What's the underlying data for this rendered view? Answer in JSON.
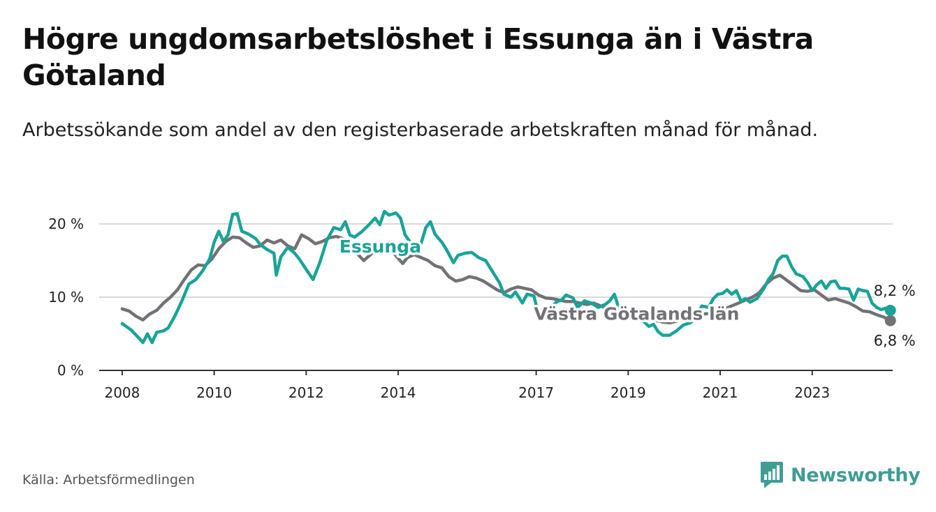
{
  "title": "Högre ungdomsarbetslöshet i Essunga än i Västra Götaland",
  "subtitle": "Arbetssökande som andel av den registerbaserade arbetskraften månad för månad.",
  "source": "Källa: Arbetsförmedlingen",
  "brand": "Newsworthy",
  "colors": {
    "essunga": "#1aa397",
    "vg": "#737176",
    "grid": "#d9d9d9",
    "axis": "#333333"
  },
  "chart_data": {
    "type": "line",
    "title": "Högre ungdomsarbetslöshet i Essunga än i Västra Götaland",
    "xlabel": "",
    "ylabel": "",
    "xlim": [
      2007.5,
      2024.75
    ],
    "ylim": [
      0,
      22
    ],
    "y_ticks": [
      0,
      10,
      20
    ],
    "y_tick_labels": [
      "0 %",
      "10 %",
      "20 %"
    ],
    "x_ticks": [
      2008,
      2010,
      2012,
      2014,
      2017,
      2019,
      2021,
      2023
    ],
    "x_tick_labels": [
      "2008",
      "2010",
      "2012",
      "2014",
      "2017",
      "2019",
      "2021",
      "2023"
    ],
    "grid": true,
    "series": [
      {
        "name": "Essunga",
        "label": "Essunga",
        "end_label": "8,2 %",
        "points": [
          [
            2008.0,
            6.4
          ],
          [
            2008.2,
            5.5
          ],
          [
            2008.35,
            4.5
          ],
          [
            2008.45,
            3.8
          ],
          [
            2008.55,
            5.0
          ],
          [
            2008.65,
            3.8
          ],
          [
            2008.75,
            5.2
          ],
          [
            2008.9,
            5.4
          ],
          [
            2009.0,
            5.8
          ],
          [
            2009.15,
            7.5
          ],
          [
            2009.3,
            9.5
          ],
          [
            2009.45,
            11.8
          ],
          [
            2009.6,
            12.4
          ],
          [
            2009.75,
            13.6
          ],
          [
            2009.9,
            15.2
          ],
          [
            2010.0,
            17.5
          ],
          [
            2010.1,
            19.0
          ],
          [
            2010.2,
            17.6
          ],
          [
            2010.3,
            18.5
          ],
          [
            2010.4,
            21.3
          ],
          [
            2010.5,
            21.4
          ],
          [
            2010.6,
            19.0
          ],
          [
            2010.75,
            18.6
          ],
          [
            2010.9,
            18.0
          ],
          [
            2011.0,
            17.2
          ],
          [
            2011.15,
            16.5
          ],
          [
            2011.3,
            16.0
          ],
          [
            2011.35,
            13.0
          ],
          [
            2011.45,
            15.5
          ],
          [
            2011.6,
            16.8
          ],
          [
            2011.75,
            16.0
          ],
          [
            2011.85,
            15.2
          ],
          [
            2012.0,
            13.8
          ],
          [
            2012.15,
            12.4
          ],
          [
            2012.3,
            14.8
          ],
          [
            2012.45,
            17.8
          ],
          [
            2012.6,
            19.5
          ],
          [
            2012.75,
            19.2
          ],
          [
            2012.85,
            20.3
          ],
          [
            2012.95,
            18.5
          ],
          [
            2013.05,
            18.2
          ],
          [
            2013.2,
            18.9
          ],
          [
            2013.35,
            19.8
          ],
          [
            2013.5,
            20.8
          ],
          [
            2013.6,
            19.9
          ],
          [
            2013.7,
            21.7
          ],
          [
            2013.8,
            21.2
          ],
          [
            2013.95,
            21.5
          ],
          [
            2014.05,
            20.8
          ],
          [
            2014.15,
            18.5
          ],
          [
            2014.3,
            17.2
          ],
          [
            2014.4,
            16.0
          ],
          [
            2014.5,
            17.4
          ],
          [
            2014.6,
            19.5
          ],
          [
            2014.7,
            20.3
          ],
          [
            2014.8,
            18.6
          ],
          [
            2014.95,
            17.5
          ],
          [
            2015.05,
            16.5
          ],
          [
            2015.2,
            14.7
          ],
          [
            2015.3,
            15.7
          ],
          [
            2015.45,
            16.0
          ],
          [
            2015.6,
            16.1
          ],
          [
            2015.75,
            15.4
          ],
          [
            2015.9,
            15.0
          ],
          [
            2016.05,
            13.5
          ],
          [
            2016.2,
            12.0
          ],
          [
            2016.3,
            10.4
          ],
          [
            2016.45,
            10.0
          ],
          [
            2016.55,
            10.7
          ],
          [
            2016.7,
            9.2
          ],
          [
            2016.8,
            10.4
          ],
          [
            2016.95,
            10.2
          ],
          [
            2017.05,
            7.6
          ],
          [
            2017.15,
            8.5
          ],
          [
            2017.3,
            8.4
          ],
          [
            2017.45,
            9.4
          ],
          [
            2017.55,
            9.6
          ],
          [
            2017.65,
            10.3
          ],
          [
            2017.8,
            9.9
          ],
          [
            2017.9,
            8.6
          ],
          [
            2018.05,
            9.5
          ],
          [
            2018.2,
            9.2
          ],
          [
            2018.35,
            8.6
          ],
          [
            2018.5,
            9.0
          ],
          [
            2018.6,
            9.5
          ],
          [
            2018.7,
            10.4
          ],
          [
            2018.8,
            8.4
          ],
          [
            2018.95,
            7.9
          ],
          [
            2019.05,
            7.5
          ],
          [
            2019.2,
            7.1
          ],
          [
            2019.35,
            6.6
          ],
          [
            2019.45,
            6.0
          ],
          [
            2019.55,
            6.3
          ],
          [
            2019.65,
            5.3
          ],
          [
            2019.75,
            4.8
          ],
          [
            2019.9,
            4.8
          ],
          [
            2020.05,
            5.4
          ],
          [
            2020.2,
            6.2
          ],
          [
            2020.35,
            6.5
          ],
          [
            2020.45,
            7.1
          ],
          [
            2020.6,
            8.8
          ],
          [
            2020.75,
            8.6
          ],
          [
            2020.85,
            9.8
          ],
          [
            2020.95,
            10.4
          ],
          [
            2021.05,
            10.5
          ],
          [
            2021.15,
            11.0
          ],
          [
            2021.25,
            10.4
          ],
          [
            2021.35,
            10.9
          ],
          [
            2021.45,
            9.5
          ],
          [
            2021.55,
            9.8
          ],
          [
            2021.65,
            9.3
          ],
          [
            2021.8,
            9.8
          ],
          [
            2021.95,
            11.2
          ],
          [
            2022.05,
            12.4
          ],
          [
            2022.15,
            13.2
          ],
          [
            2022.25,
            15.0
          ],
          [
            2022.35,
            15.6
          ],
          [
            2022.45,
            15.6
          ],
          [
            2022.55,
            14.2
          ],
          [
            2022.65,
            13.2
          ],
          [
            2022.8,
            12.8
          ],
          [
            2022.9,
            12.0
          ],
          [
            2023.0,
            10.9
          ],
          [
            2023.1,
            11.7
          ],
          [
            2023.2,
            12.2
          ],
          [
            2023.3,
            11.2
          ],
          [
            2023.4,
            12.1
          ],
          [
            2023.5,
            12.2
          ],
          [
            2023.6,
            11.2
          ],
          [
            2023.7,
            11.2
          ],
          [
            2023.8,
            11.1
          ],
          [
            2023.9,
            9.6
          ],
          [
            2024.0,
            11.1
          ],
          [
            2024.1,
            10.9
          ],
          [
            2024.2,
            10.8
          ],
          [
            2024.3,
            9.2
          ],
          [
            2024.4,
            8.6
          ],
          [
            2024.5,
            8.3
          ],
          [
            2024.6,
            8.5
          ],
          [
            2024.7,
            8.2
          ]
        ]
      },
      {
        "name": "Västra Götalands län",
        "label": "Västra Götalands län",
        "end_label": "6,8 %",
        "points": [
          [
            2008.0,
            8.4
          ],
          [
            2008.15,
            8.1
          ],
          [
            2008.3,
            7.4
          ],
          [
            2008.45,
            6.9
          ],
          [
            2008.6,
            7.7
          ],
          [
            2008.75,
            8.2
          ],
          [
            2008.9,
            9.2
          ],
          [
            2009.05,
            10.0
          ],
          [
            2009.2,
            11.0
          ],
          [
            2009.35,
            12.4
          ],
          [
            2009.5,
            13.7
          ],
          [
            2009.65,
            14.4
          ],
          [
            2009.8,
            14.3
          ],
          [
            2009.95,
            15.2
          ],
          [
            2010.1,
            16.6
          ],
          [
            2010.25,
            17.6
          ],
          [
            2010.4,
            18.2
          ],
          [
            2010.55,
            18.1
          ],
          [
            2010.7,
            17.4
          ],
          [
            2010.85,
            16.8
          ],
          [
            2011.0,
            17.0
          ],
          [
            2011.15,
            17.8
          ],
          [
            2011.3,
            17.4
          ],
          [
            2011.45,
            17.8
          ],
          [
            2011.6,
            17.0
          ],
          [
            2011.75,
            16.6
          ],
          [
            2011.9,
            18.5
          ],
          [
            2012.05,
            18.0
          ],
          [
            2012.2,
            17.3
          ],
          [
            2012.35,
            17.6
          ],
          [
            2012.5,
            18.1
          ],
          [
            2012.65,
            18.3
          ],
          [
            2012.8,
            18.0
          ],
          [
            2012.95,
            17.7
          ],
          [
            2013.1,
            16.0
          ],
          [
            2013.25,
            15.0
          ],
          [
            2013.4,
            15.8
          ],
          [
            2013.55,
            16.8
          ],
          [
            2013.7,
            17.3
          ],
          [
            2013.85,
            16.4
          ],
          [
            2014.0,
            15.3
          ],
          [
            2014.1,
            14.6
          ],
          [
            2014.2,
            15.4
          ],
          [
            2014.35,
            15.8
          ],
          [
            2014.5,
            15.4
          ],
          [
            2014.65,
            15.0
          ],
          [
            2014.8,
            14.3
          ],
          [
            2014.95,
            14.0
          ],
          [
            2015.1,
            12.8
          ],
          [
            2015.25,
            12.2
          ],
          [
            2015.4,
            12.4
          ],
          [
            2015.55,
            12.8
          ],
          [
            2015.7,
            12.6
          ],
          [
            2015.85,
            12.2
          ],
          [
            2016.0,
            11.6
          ],
          [
            2016.15,
            11.0
          ],
          [
            2016.3,
            10.6
          ],
          [
            2016.45,
            11.1
          ],
          [
            2016.6,
            11.4
          ],
          [
            2016.75,
            11.2
          ],
          [
            2016.9,
            11.0
          ],
          [
            2017.05,
            10.3
          ],
          [
            2017.2,
            9.9
          ],
          [
            2017.35,
            9.8
          ],
          [
            2017.5,
            9.6
          ],
          [
            2017.65,
            9.4
          ],
          [
            2017.8,
            9.4
          ],
          [
            2017.95,
            9.2
          ],
          [
            2018.1,
            9.0
          ],
          [
            2018.25,
            9.2
          ],
          [
            2018.4,
            8.8
          ],
          [
            2018.55,
            8.4
          ],
          [
            2018.7,
            8.3
          ],
          [
            2018.85,
            8.2
          ],
          [
            2019.0,
            8.0
          ],
          [
            2019.15,
            7.8
          ],
          [
            2019.3,
            7.4
          ],
          [
            2019.45,
            7.0
          ],
          [
            2019.6,
            6.8
          ],
          [
            2019.75,
            6.6
          ],
          [
            2019.9,
            6.5
          ],
          [
            2020.05,
            6.7
          ],
          [
            2020.2,
            7.0
          ],
          [
            2020.35,
            7.4
          ],
          [
            2020.5,
            7.6
          ],
          [
            2020.65,
            7.7
          ],
          [
            2020.8,
            7.8
          ],
          [
            2020.95,
            8.1
          ],
          [
            2021.1,
            8.4
          ],
          [
            2021.25,
            8.8
          ],
          [
            2021.4,
            9.2
          ],
          [
            2021.55,
            9.6
          ],
          [
            2021.7,
            10.0
          ],
          [
            2021.85,
            10.6
          ],
          [
            2022.0,
            11.8
          ],
          [
            2022.15,
            12.6
          ],
          [
            2022.3,
            13.0
          ],
          [
            2022.45,
            12.3
          ],
          [
            2022.6,
            11.6
          ],
          [
            2022.75,
            10.9
          ],
          [
            2022.9,
            10.8
          ],
          [
            2023.05,
            11.0
          ],
          [
            2023.2,
            10.3
          ],
          [
            2023.35,
            9.6
          ],
          [
            2023.5,
            9.8
          ],
          [
            2023.65,
            9.5
          ],
          [
            2023.8,
            9.2
          ],
          [
            2023.95,
            8.7
          ],
          [
            2024.1,
            8.1
          ],
          [
            2024.25,
            8.0
          ],
          [
            2024.4,
            7.6
          ],
          [
            2024.55,
            7.3
          ],
          [
            2024.7,
            6.8
          ]
        ]
      }
    ]
  }
}
